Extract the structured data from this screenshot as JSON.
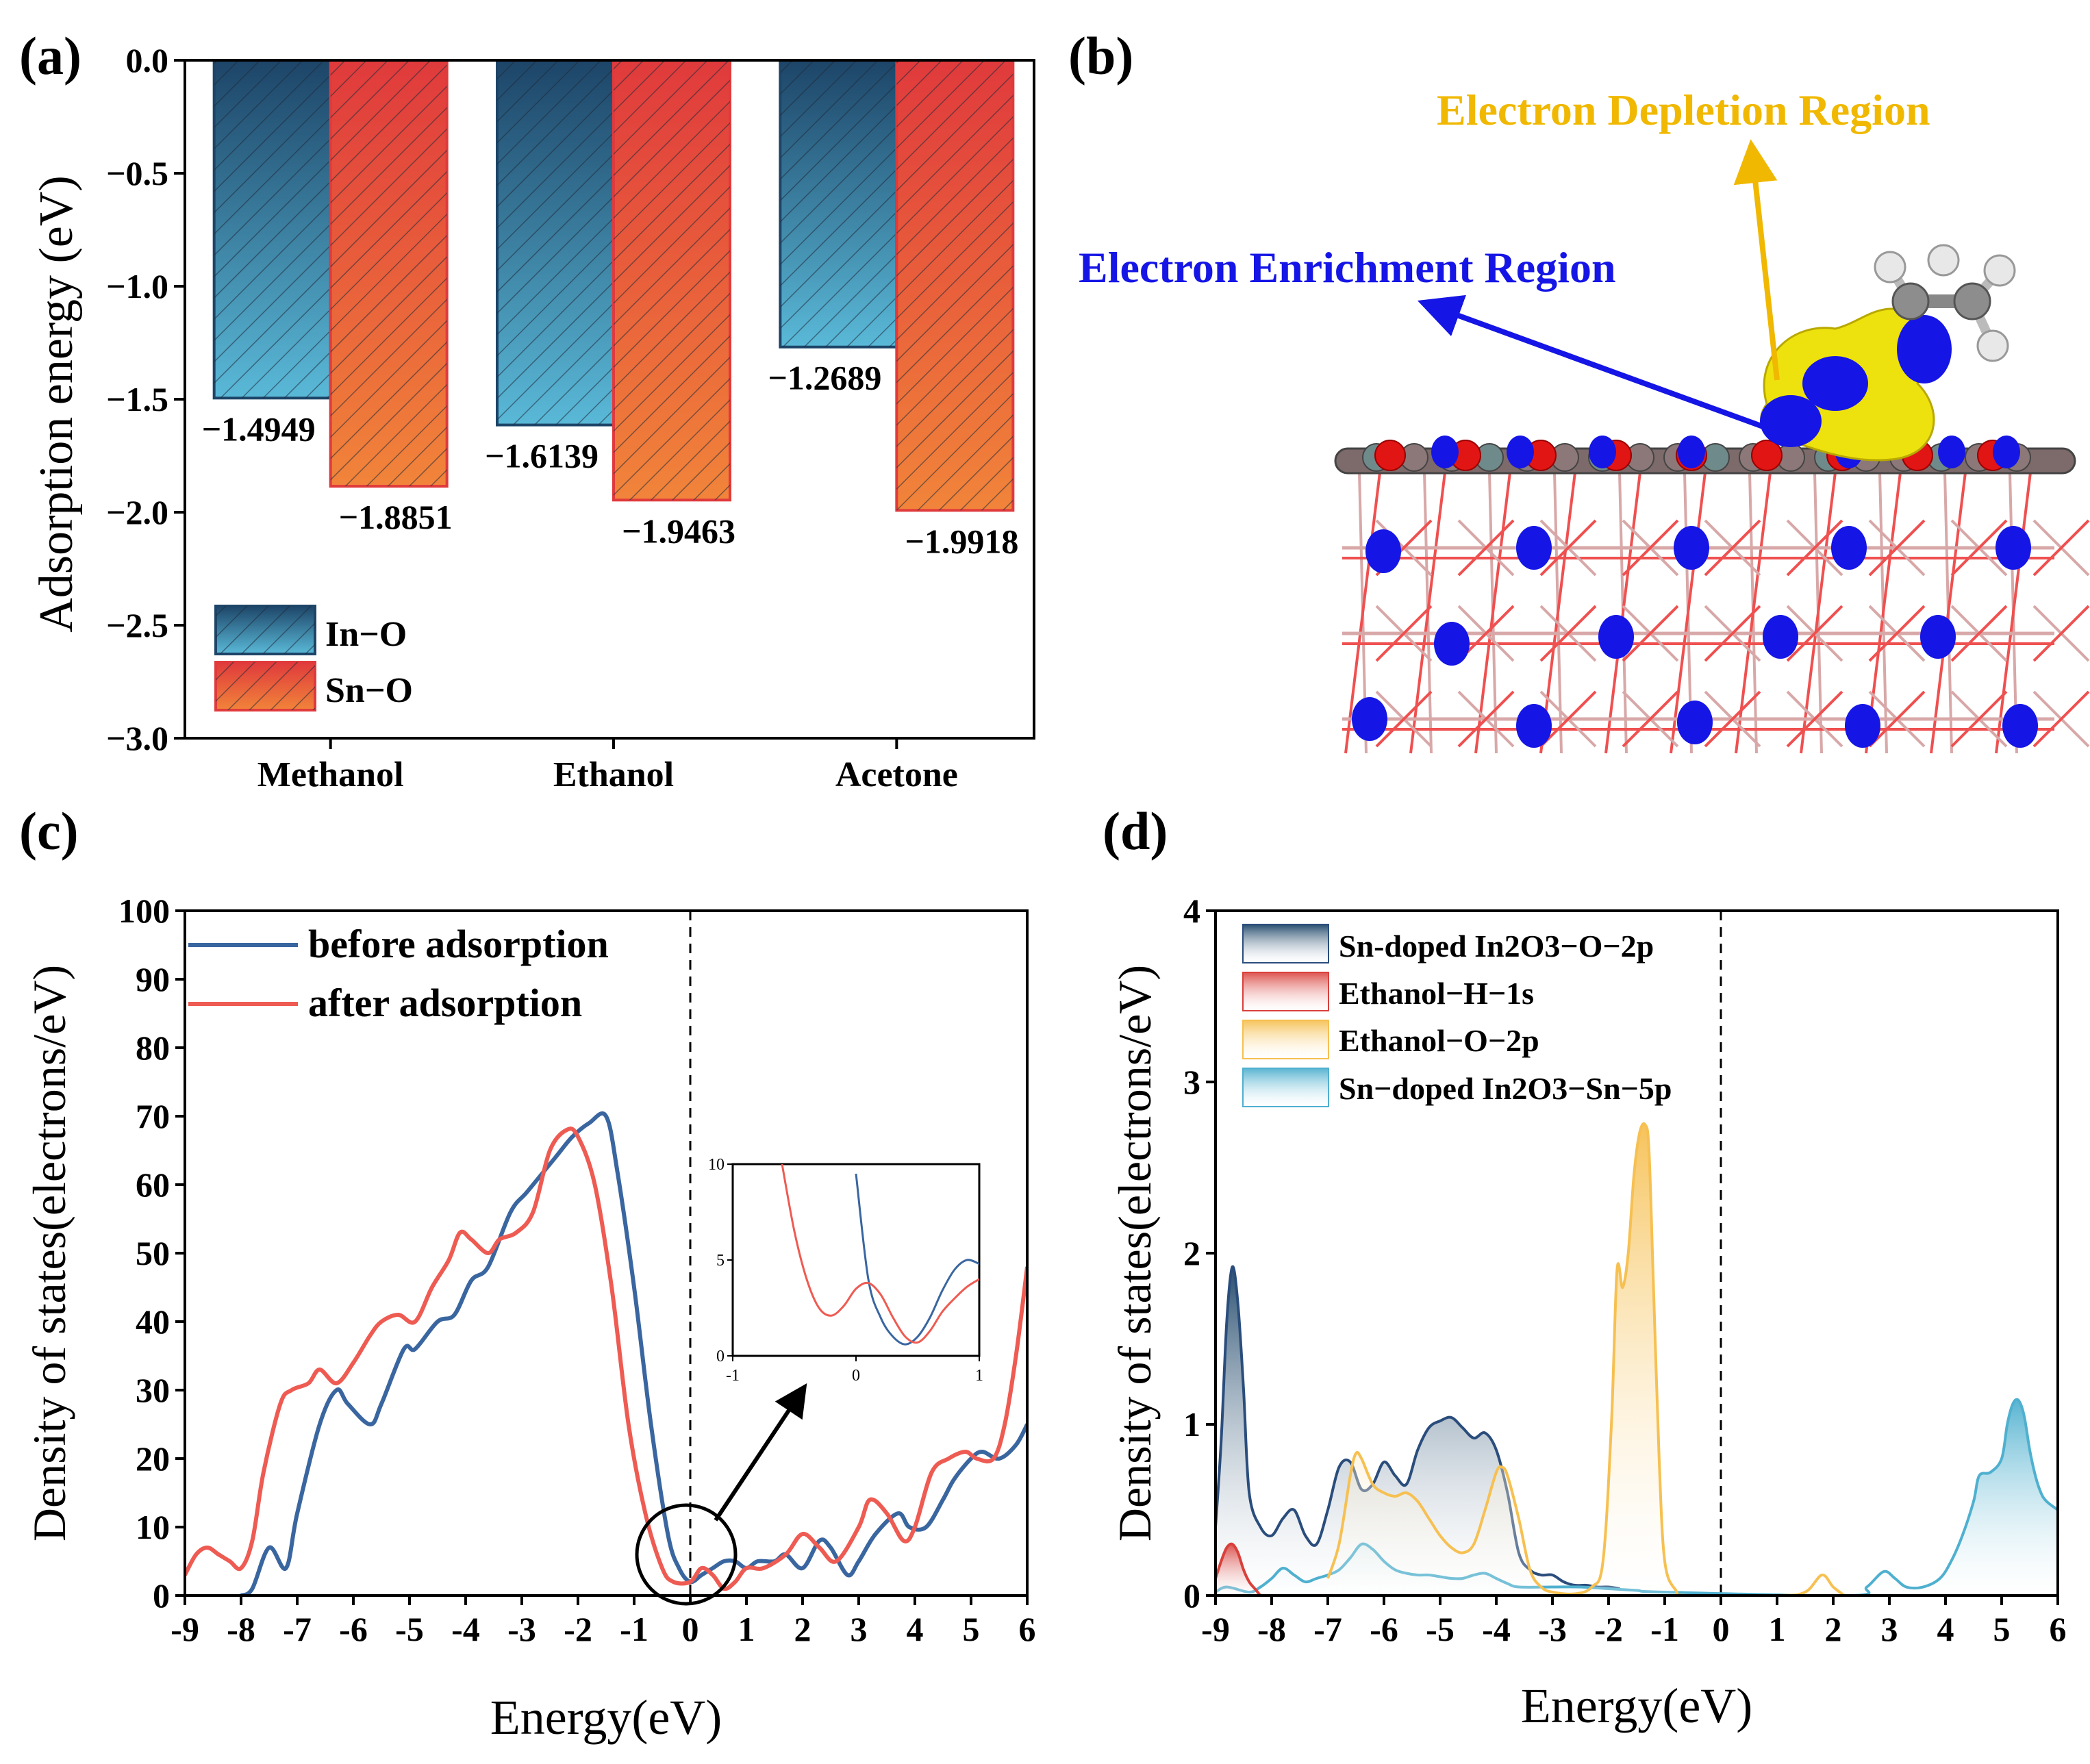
{
  "panels": {
    "a": {
      "label": "(a)"
    },
    "b": {
      "label": "(b)",
      "enrichment_label": "Electron Enrichment Region",
      "depletion_label": "Electron Depletion Region"
    },
    "c": {
      "label": "(c)"
    },
    "d": {
      "label": "(d)"
    }
  },
  "colors": {
    "in_o_top": "#1d4568",
    "in_o_bottom": "#5ab9d8",
    "sn_o_top": "#e03a3c",
    "sn_o_bottom": "#f1843a",
    "before": "#3a66a0",
    "after": "#ee5b52",
    "sn_o2p": "#2a4d7c",
    "h1s": "#d9403b",
    "o2p": "#f6c052",
    "sn5p": "#4fb0cf",
    "enrich": "#1515e6",
    "deplete": "#f0b800"
  },
  "chart_data": [
    {
      "id": "a",
      "type": "bar",
      "title": "",
      "xlabel": "",
      "ylabel": "Adsorption energy (eV)",
      "ylim": [
        -3.0,
        0.0
      ],
      "yticks": [
        "0.0",
        "−0.5",
        "−1.0",
        "−1.5",
        "−2.0",
        "−2.5",
        "−3.0"
      ],
      "categories": [
        "Methanol",
        "Ethanol",
        "Acetone"
      ],
      "series": [
        {
          "name": "In−O",
          "values": [
            -1.4949,
            -1.6139,
            -1.2689
          ],
          "labels": [
            "−1.4949",
            "−1.6139",
            "−1.2689"
          ]
        },
        {
          "name": "Sn−O",
          "values": [
            -1.8851,
            -1.9463,
            -1.9918
          ],
          "labels": [
            "−1.8851",
            "−1.9463",
            "−1.9918"
          ]
        }
      ],
      "legend": "bottom-left"
    },
    {
      "id": "c",
      "type": "line",
      "xlabel": "Energy(eV)",
      "ylabel": "Density of states(electrons/eV)",
      "xlim": [
        -9,
        6
      ],
      "ylim": [
        0,
        100
      ],
      "xticks": [
        "-9",
        "-8",
        "-7",
        "-6",
        "-5",
        "-4",
        "-3",
        "-2",
        "-1",
        "0",
        "1",
        "2",
        "3",
        "4",
        "5",
        "6"
      ],
      "yticks": [
        "0",
        "10",
        "20",
        "30",
        "40",
        "50",
        "60",
        "70",
        "80",
        "90",
        "100"
      ],
      "fermi_level": 0,
      "series": [
        {
          "name": "before adsorption",
          "x": [
            -8.0,
            -7.8,
            -7.5,
            -7.2,
            -7.0,
            -6.6,
            -6.3,
            -6.1,
            -5.7,
            -5.5,
            -5.1,
            -4.9,
            -4.5,
            -4.2,
            -3.9,
            -3.6,
            -3.2,
            -2.9,
            -2.4,
            -2.1,
            -1.8,
            -1.5,
            -1.3,
            -1.0,
            -0.7,
            -0.4,
            -0.2,
            0.0,
            0.2,
            0.4,
            0.6,
            0.8,
            1.0,
            1.2,
            1.5,
            1.7,
            2.0,
            2.3,
            2.5,
            2.8,
            3.0,
            3.3,
            3.7,
            3.9,
            4.2,
            4.5,
            4.7,
            5.0,
            5.2,
            5.5,
            5.8,
            6.0
          ],
          "y": [
            0,
            1,
            7,
            4,
            12,
            25,
            30,
            28,
            25,
            28,
            36,
            36,
            40,
            41,
            46,
            48,
            56,
            59,
            64,
            67,
            69,
            70,
            62,
            45,
            25,
            9,
            4,
            2,
            3,
            4,
            5,
            5,
            4,
            5,
            5,
            6,
            4,
            8,
            7,
            3,
            5,
            9,
            12,
            10,
            10,
            14,
            17,
            20,
            21,
            20,
            22,
            25
          ]
        },
        {
          "name": "after adsorption",
          "x": [
            -9.0,
            -8.8,
            -8.6,
            -8.4,
            -8.2,
            -8.0,
            -7.8,
            -7.6,
            -7.3,
            -7.1,
            -6.8,
            -6.6,
            -6.3,
            -6.0,
            -5.7,
            -5.5,
            -5.2,
            -4.9,
            -4.6,
            -4.3,
            -4.1,
            -3.9,
            -3.6,
            -3.4,
            -3.1,
            -2.8,
            -2.5,
            -2.2,
            -2.0,
            -1.7,
            -1.4,
            -1.1,
            -0.8,
            -0.5,
            -0.3,
            0.0,
            0.2,
            0.4,
            0.6,
            0.8,
            1.0,
            1.3,
            1.7,
            2.0,
            2.3,
            2.6,
            3.0,
            3.2,
            3.5,
            3.8,
            4.0,
            4.3,
            4.6,
            4.9,
            5.1,
            5.4,
            5.6,
            5.8,
            6.0
          ],
          "y": [
            3,
            6,
            7,
            6,
            5,
            4,
            8,
            18,
            28,
            30,
            31,
            33,
            31,
            34,
            38,
            40,
            41,
            40,
            45,
            49,
            53,
            52,
            50,
            52,
            53,
            56,
            65,
            68,
            67,
            60,
            45,
            25,
            12,
            4,
            2,
            2,
            4,
            3,
            1,
            2,
            4,
            4,
            6,
            9,
            7,
            5,
            10,
            14,
            12,
            8,
            10,
            18,
            20,
            21,
            20,
            20,
            25,
            35,
            48
          ]
        }
      ],
      "inset": {
        "xlim": [
          -1,
          1
        ],
        "ylim": [
          0,
          10
        ],
        "xticks": [
          "-1",
          "0",
          "1"
        ],
        "yticks": [
          "0",
          "5",
          "10"
        ],
        "before": {
          "x": [
            0.0,
            0.1,
            0.2,
            0.3,
            0.4,
            0.5,
            0.6,
            0.7,
            0.8,
            0.9,
            1.0
          ],
          "y": [
            9.5,
            4.0,
            2.0,
            1.0,
            0.6,
            1.0,
            2.0,
            3.4,
            4.5,
            5.0,
            4.8
          ]
        },
        "after": {
          "x": [
            -0.6,
            -0.5,
            -0.4,
            -0.3,
            -0.2,
            -0.1,
            0.0,
            0.1,
            0.2,
            0.3,
            0.4,
            0.5,
            0.6,
            0.7,
            0.8,
            0.9,
            1.0
          ],
          "y": [
            10.0,
            6.5,
            4.0,
            2.5,
            2.1,
            2.6,
            3.5,
            3.8,
            3.2,
            2.0,
            1.0,
            0.7,
            1.3,
            2.3,
            3.0,
            3.6,
            4.0
          ]
        }
      },
      "legend": "top-left"
    },
    {
      "id": "d",
      "type": "area",
      "xlabel": "Energy(eV)",
      "ylabel": "Density of states(electrons/eV)",
      "xlim": [
        -9,
        6
      ],
      "ylim": [
        0,
        4
      ],
      "xticks": [
        "-9",
        "-8",
        "-7",
        "-6",
        "-5",
        "-4",
        "-3",
        "-2",
        "-1",
        "0",
        "1",
        "2",
        "3",
        "4",
        "5",
        "6"
      ],
      "yticks": [
        "0",
        "1",
        "2",
        "3",
        "4"
      ],
      "fermi_level": 0,
      "series": [
        {
          "name": "Sn-doped In2O3−O−2p",
          "x": [
            -9.0,
            -8.9,
            -8.8,
            -8.7,
            -8.6,
            -8.5,
            -8.4,
            -8.2,
            -8.0,
            -7.8,
            -7.6,
            -7.4,
            -7.2,
            -7.0,
            -6.8,
            -6.6,
            -6.4,
            -6.2,
            -6.0,
            -5.8,
            -5.6,
            -5.4,
            -5.2,
            -5.0,
            -4.8,
            -4.6,
            -4.4,
            -4.2,
            -4.0,
            -3.8,
            -3.6,
            -3.4,
            -3.2,
            -3.0,
            -2.8,
            -2.6,
            -2.4,
            -2.2,
            -2.0,
            -1.8
          ],
          "y": [
            0.4,
            0.9,
            1.6,
            1.92,
            1.7,
            1.2,
            0.6,
            0.4,
            0.35,
            0.45,
            0.5,
            0.35,
            0.3,
            0.5,
            0.75,
            0.78,
            0.62,
            0.65,
            0.78,
            0.7,
            0.65,
            0.85,
            0.98,
            1.02,
            1.04,
            0.98,
            0.92,
            0.95,
            0.85,
            0.6,
            0.25,
            0.15,
            0.12,
            0.12,
            0.08,
            0.06,
            0.06,
            0.05,
            0.05,
            0.04
          ]
        },
        {
          "name": "Ethanol−H−1s",
          "x": [
            -9.0,
            -8.9,
            -8.8,
            -8.7,
            -8.6,
            -8.5,
            -8.4,
            -8.3,
            -8.2
          ],
          "y": [
            0.1,
            0.2,
            0.28,
            0.3,
            0.25,
            0.15,
            0.08,
            0.04,
            0.0
          ]
        },
        {
          "name": "Ethanol−O−2p",
          "x": [
            -7.0,
            -6.8,
            -6.6,
            -6.5,
            -6.4,
            -6.2,
            -6.0,
            -5.8,
            -5.6,
            -5.4,
            -5.2,
            -5.0,
            -4.8,
            -4.6,
            -4.4,
            -4.2,
            -4.0,
            -3.9,
            -3.8,
            -3.6,
            -3.4,
            -3.2,
            -3.0,
            -2.6,
            -2.3,
            -2.1,
            -1.95,
            -1.85,
            -1.75,
            -1.65,
            -1.55,
            -1.45,
            -1.35,
            -1.28,
            -1.2,
            -1.1,
            -1.0,
            -0.8,
            -0.6,
            1.0,
            1.5,
            1.8,
            2.0,
            2.2
          ],
          "y": [
            0.1,
            0.3,
            0.7,
            0.83,
            0.8,
            0.65,
            0.6,
            0.58,
            0.6,
            0.55,
            0.45,
            0.35,
            0.28,
            0.25,
            0.3,
            0.5,
            0.72,
            0.75,
            0.7,
            0.45,
            0.15,
            0.05,
            0.02,
            0.01,
            0.05,
            0.2,
            1.0,
            1.9,
            1.8,
            2.0,
            2.45,
            2.7,
            2.75,
            2.6,
            1.8,
            0.8,
            0.2,
            0.03,
            0.0,
            0.0,
            0.02,
            0.12,
            0.05,
            0.0
          ]
        },
        {
          "name": "Sn−doped In2O3−Sn−5p",
          "x": [
            -9.0,
            -8.8,
            -8.4,
            -8.2,
            -8.0,
            -7.8,
            -7.6,
            -7.4,
            -7.2,
            -7.0,
            -6.8,
            -6.6,
            -6.4,
            -6.2,
            -6.0,
            -5.8,
            -5.6,
            -5.4,
            -5.2,
            -5.0,
            -4.8,
            -4.6,
            -4.4,
            -4.2,
            -4.0,
            -3.8,
            -3.6,
            -3.0,
            -2.5,
            -2.0,
            -1.5,
            -1.0,
            2.3,
            2.6,
            2.9,
            3.1,
            3.3,
            3.6,
            3.9,
            4.1,
            4.3,
            4.5,
            4.6,
            4.8,
            5.0,
            5.1,
            5.2,
            5.3,
            5.4,
            5.5,
            5.6,
            5.7,
            5.8,
            6.0
          ],
          "y": [
            0.02,
            0.05,
            0.02,
            0.05,
            0.1,
            0.16,
            0.12,
            0.08,
            0.1,
            0.12,
            0.15,
            0.22,
            0.3,
            0.27,
            0.2,
            0.15,
            0.13,
            0.12,
            0.12,
            0.11,
            0.1,
            0.1,
            0.12,
            0.13,
            0.1,
            0.07,
            0.05,
            0.05,
            0.05,
            0.04,
            0.03,
            0.02,
            0.0,
            0.05,
            0.14,
            0.1,
            0.05,
            0.05,
            0.1,
            0.2,
            0.35,
            0.55,
            0.7,
            0.72,
            0.8,
            1.0,
            1.12,
            1.14,
            1.05,
            0.85,
            0.7,
            0.6,
            0.55,
            0.5
          ]
        }
      ],
      "legend": "top-left"
    }
  ]
}
